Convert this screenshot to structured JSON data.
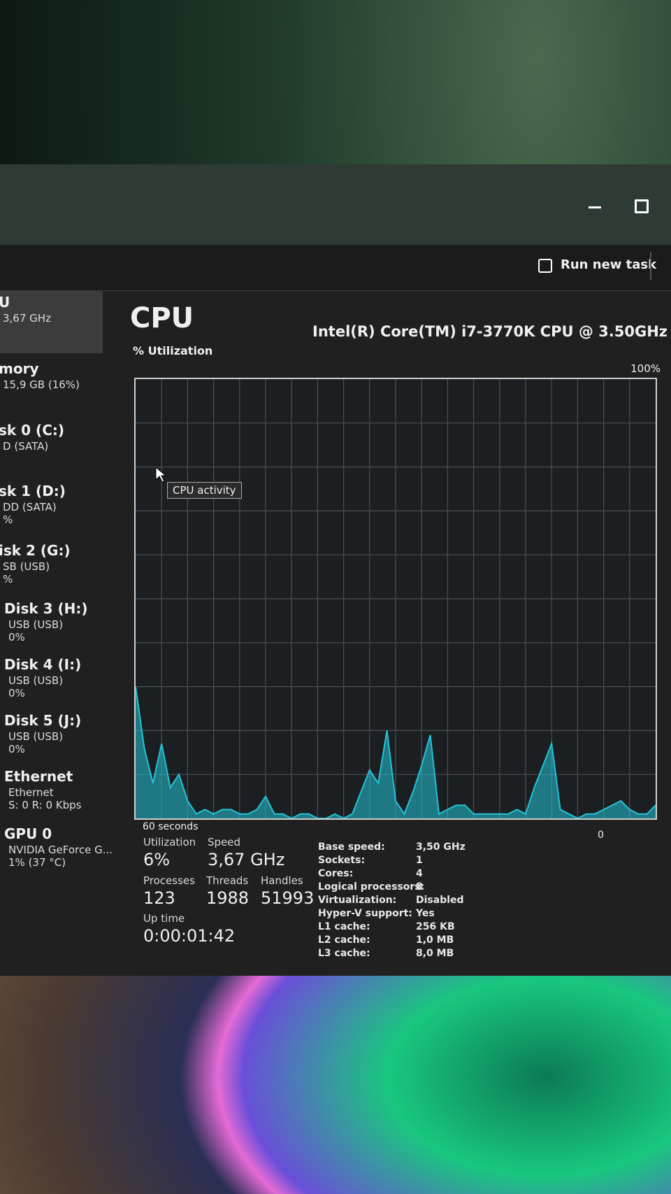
{
  "window": {
    "run_new_task": "Run new task"
  },
  "sidebar": [
    {
      "name": "U",
      "lines": [
        "3,67 GHz"
      ]
    },
    {
      "name": "mory",
      "lines": [
        "15,9 GB (16%)"
      ]
    },
    {
      "name": "sk 0 (C:)",
      "lines": [
        "D (SATA)"
      ]
    },
    {
      "name": "sk 1 (D:)",
      "lines": [
        "DD (SATA)",
        "%"
      ]
    },
    {
      "name": "isk 2 (G:)",
      "lines": [
        "SB (USB)",
        "%"
      ]
    },
    {
      "name": "Disk 3 (H:)",
      "lines": [
        "USB (USB)",
        "0%"
      ]
    },
    {
      "name": "Disk 4 (I:)",
      "lines": [
        "USB (USB)",
        "0%"
      ]
    },
    {
      "name": "Disk 5 (J:)",
      "lines": [
        "USB (USB)",
        "0%"
      ]
    },
    {
      "name": "Ethernet",
      "lines": [
        "Ethernet",
        "S: 0 R: 0 Kbps"
      ]
    },
    {
      "name": "GPU 0",
      "lines": [
        "NVIDIA GeForce G...",
        "1% (37 °C)"
      ]
    }
  ],
  "header": {
    "title": "CPU",
    "processor": "Intel(R) Core(TM) i7-3770K CPU @ 3.50GHz"
  },
  "graph": {
    "y_label": "% Utilization",
    "max_label": "100%",
    "time_label": "60 seconds",
    "end_label": "0",
    "tooltip": "CPU activity",
    "ylim": [
      0,
      100
    ],
    "color": "#22c3d6",
    "values": [
      30,
      16,
      8,
      17,
      7,
      10,
      4,
      1,
      2,
      1,
      2,
      2,
      1,
      1,
      2,
      5,
      1,
      1,
      0,
      1,
      1,
      0,
      0,
      1,
      0,
      1,
      6,
      11,
      8,
      20,
      4,
      1,
      6,
      12,
      19,
      1,
      2,
      3,
      3,
      1,
      1,
      1,
      1,
      1,
      2,
      1,
      7,
      12,
      17,
      2,
      1,
      0,
      1,
      1,
      2,
      3,
      4,
      2,
      1,
      1,
      3
    ]
  },
  "stats": [
    {
      "label": "Utilization",
      "value": "6%"
    },
    {
      "label": "Speed",
      "value": "3,67 GHz"
    },
    {
      "label": "Processes",
      "value": "123"
    },
    {
      "label": "Threads",
      "value": "1988"
    },
    {
      "label": "Handles",
      "value": "51993"
    },
    {
      "label": "Up time",
      "value": "0:00:01:42"
    }
  ],
  "details": [
    [
      "Base speed:",
      "3,50 GHz"
    ],
    [
      "Sockets:",
      "1"
    ],
    [
      "Cores:",
      "4"
    ],
    [
      "Logical processors:",
      "8"
    ],
    [
      "Virtualization:",
      "Disabled"
    ],
    [
      "Hyper-V support:",
      "Yes"
    ],
    [
      "L1 cache:",
      "256 KB"
    ],
    [
      "L2 cache:",
      "1,0 MB"
    ],
    [
      "L3 cache:",
      "8,0 MB"
    ]
  ]
}
